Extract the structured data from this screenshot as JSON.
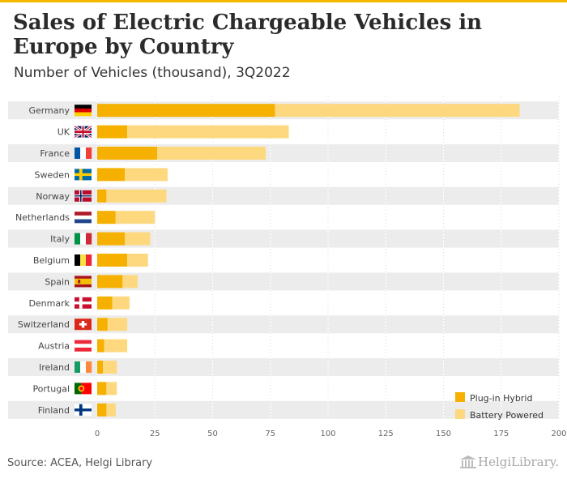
{
  "title": "Sales of Electric Chargeable Vehicles in Europe by Country",
  "subtitle": "Number of Vehicles (thousand), 3Q2022",
  "source": "Source: ACEA, Helgi Library",
  "brand": {
    "name": "HelgiLibrary.",
    "icon": "library-columns-icon"
  },
  "colors": {
    "phev": "#f5b000",
    "bev": "#fdd87e",
    "band": "#ececec",
    "accent": "#f5b800"
  },
  "chart_data": {
    "type": "bar",
    "orientation": "horizontal",
    "stacked": true,
    "categories": [
      "Germany",
      "UK",
      "France",
      "Sweden",
      "Norway",
      "Netherlands",
      "Italy",
      "Belgium",
      "Spain",
      "Denmark",
      "Switzerland",
      "Austria",
      "Ireland",
      "Portugal",
      "Finland"
    ],
    "series": [
      {
        "name": "Plug-in Hybrid",
        "color": "#f5b000",
        "values": [
          77,
          13,
          26,
          12,
          4,
          8,
          12,
          13,
          11,
          6.5,
          4.5,
          3,
          2.5,
          4,
          4
        ]
      },
      {
        "name": "Battery Powered",
        "color": "#fdd87e",
        "values": [
          106,
          70,
          47,
          18.5,
          26,
          17,
          11,
          9,
          6.5,
          7.5,
          8.5,
          10,
          6,
          4.5,
          4
        ]
      }
    ],
    "xlim": [
      0,
      200
    ],
    "xticks": [
      0,
      25,
      50,
      75,
      100,
      125,
      150,
      175,
      200
    ],
    "legend_position": "bottom-right",
    "grid": true,
    "flags": {
      "Germany": "de",
      "UK": "gb",
      "France": "fr",
      "Sweden": "se",
      "Norway": "no",
      "Netherlands": "nl",
      "Italy": "it",
      "Belgium": "be",
      "Spain": "es",
      "Denmark": "dk",
      "Switzerland": "ch",
      "Austria": "at",
      "Ireland": "ie",
      "Portugal": "pt",
      "Finland": "fi"
    }
  }
}
